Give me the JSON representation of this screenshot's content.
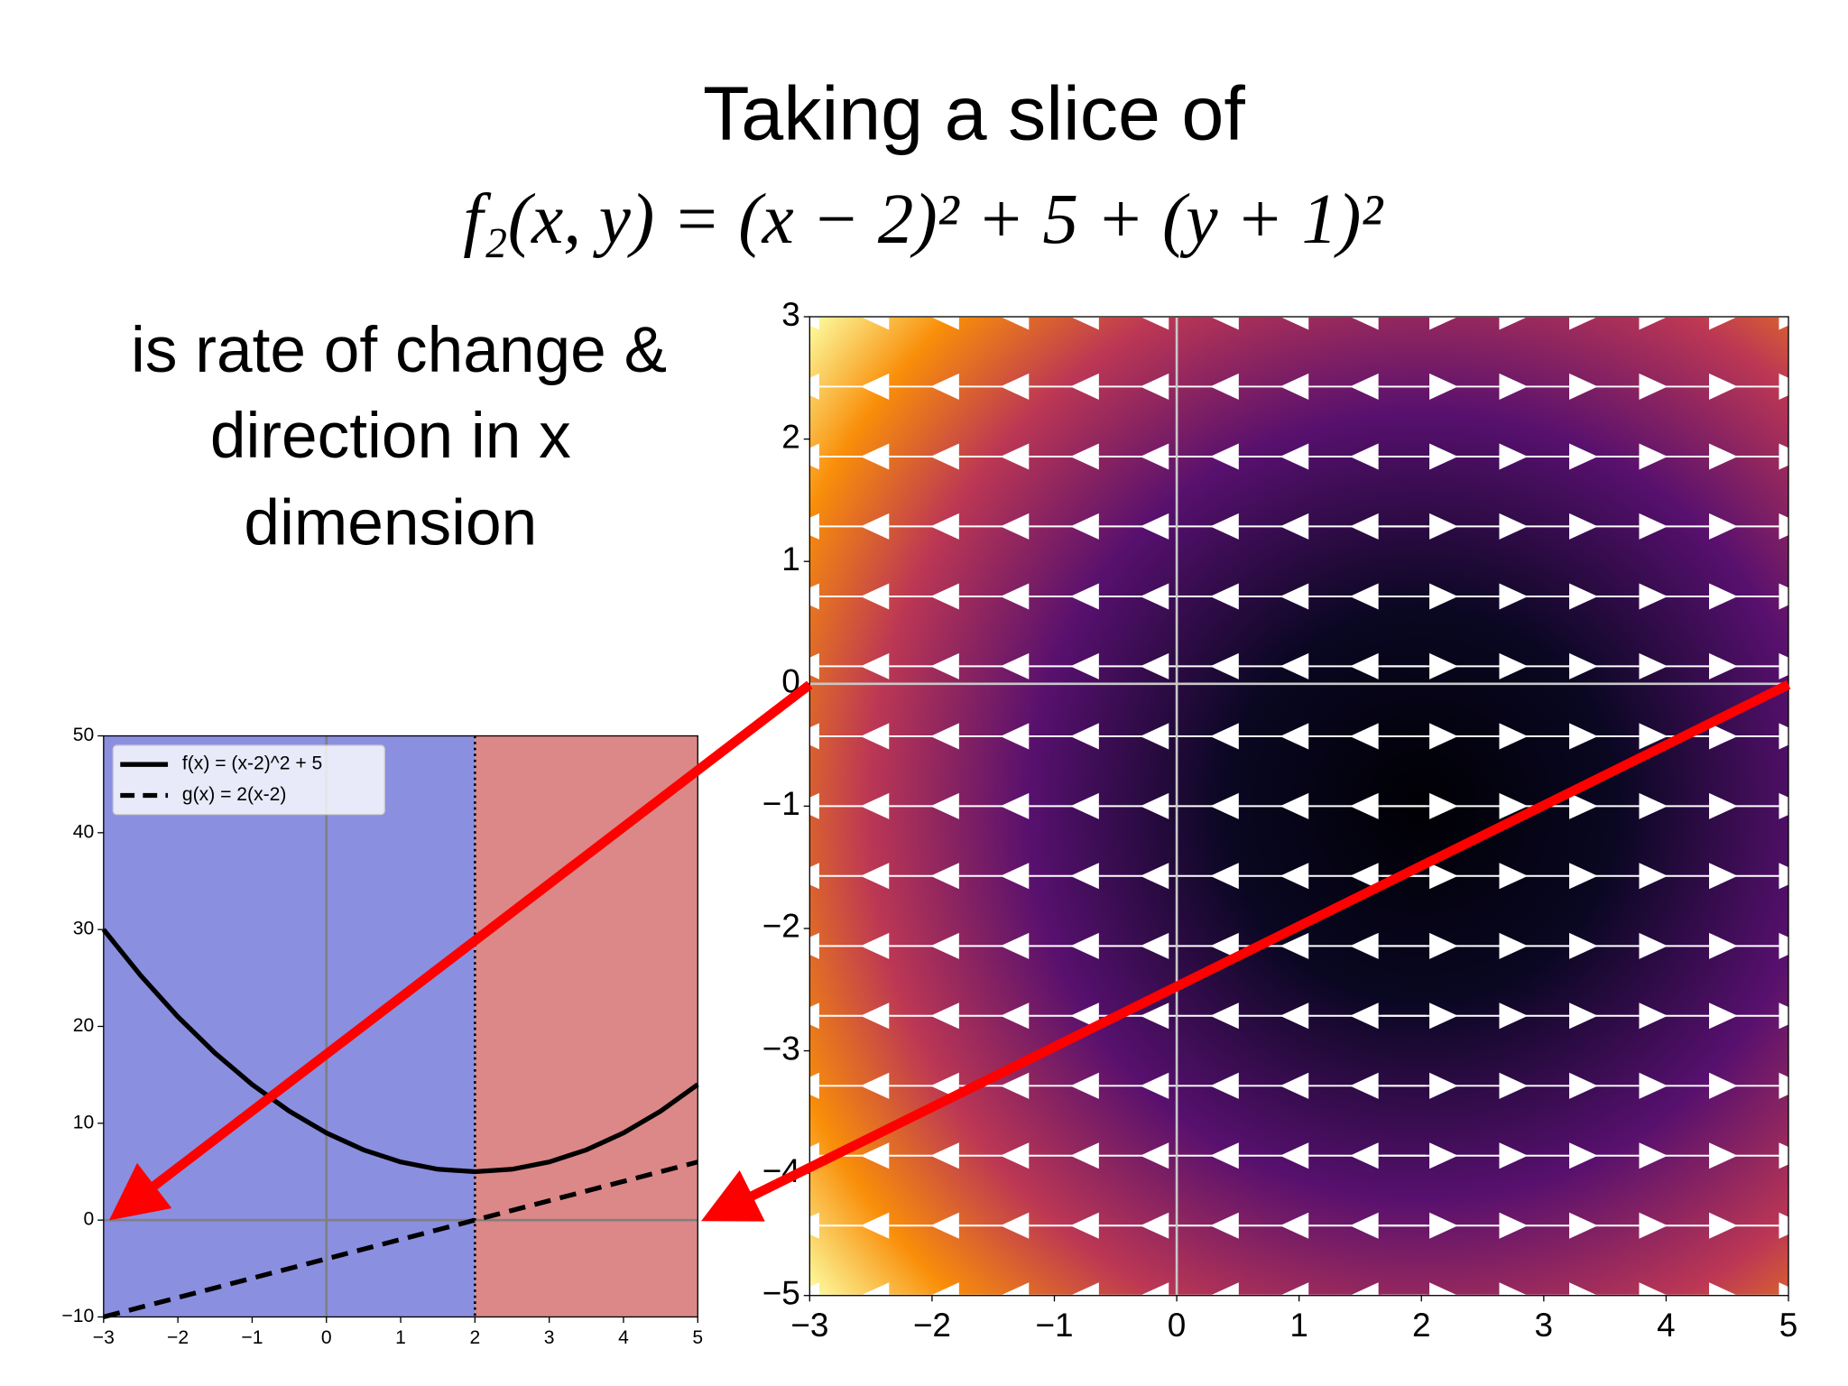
{
  "slide": {
    "title": "Taking a slice of",
    "formula": "f₂(x, y) = (x − 2)² + 5 + (y + 1)²",
    "caption": [
      "is rate of change &",
      "direction in x",
      "dimension"
    ]
  },
  "chart_data": [
    {
      "type": "line",
      "x": [
        -3,
        -2.5,
        -2,
        -1.5,
        -1,
        -0.5,
        0,
        0.5,
        1,
        1.5,
        2,
        2.5,
        3,
        3.5,
        4,
        4.5,
        5
      ],
      "series": [
        {
          "name": "f(x) = (x-2)^2 + 5",
          "color": "#000000",
          "linestyle": "solid",
          "values": [
            30,
            25.25,
            21,
            17.25,
            14,
            11.25,
            9,
            7.25,
            6,
            5.25,
            5,
            5.25,
            6,
            7.25,
            9,
            11.25,
            14
          ]
        },
        {
          "name": "g(x) = 2(x-2)",
          "color": "#000000",
          "linestyle": "dashed",
          "values": [
            -10,
            -9,
            -8,
            -7,
            -6,
            -5,
            -4,
            -3,
            -2,
            -1,
            0,
            1,
            2,
            3,
            4,
            5,
            6
          ]
        }
      ],
      "spans": [
        {
          "x0": -3,
          "x1": 2,
          "color": "#8b8fe0"
        },
        {
          "x0": 2,
          "x1": 5,
          "color": "#dc8888"
        }
      ],
      "vline": 2,
      "xlim": [
        -3,
        5
      ],
      "xticks": [
        {
          "value": -3,
          "label": "−3"
        },
        {
          "value": -2,
          "label": "−2"
        },
        {
          "value": -1,
          "label": "−1"
        },
        0,
        1,
        2,
        3,
        4,
        5
      ],
      "ylim": [
        -10,
        50
      ],
      "yticks": [
        {
          "value": -10,
          "label": "−10"
        },
        0,
        10,
        20,
        30,
        40,
        50
      ],
      "legend": "upper left"
    },
    {
      "type": "quiver",
      "x": [
        -3,
        -2.429,
        -1.857,
        -1.286,
        -0.714,
        -0.143,
        0.429,
        1,
        1.571,
        2.143,
        2.714,
        3.286,
        3.857,
        4.429,
        5
      ],
      "y": [
        -5,
        -4.429,
        -3.857,
        -3.286,
        -2.714,
        -2.143,
        -1.571,
        -1,
        -0.429,
        0.143,
        0.714,
        1.286,
        1.857,
        2.429,
        3
      ],
      "u": [
        -10,
        -8.857,
        -7.714,
        -6.571,
        -5.429,
        -4.286,
        -3.143,
        -2,
        -0.857,
        0.286,
        1.429,
        2.571,
        3.714,
        4.857,
        6
      ],
      "color": "#ffffff",
      "xlim": [
        -3,
        5
      ],
      "xticks": [
        {
          "value": -3,
          "label": "−3"
        },
        {
          "value": -2,
          "label": "−2"
        },
        {
          "value": -1,
          "label": "−1"
        },
        0,
        1,
        2,
        3,
        4,
        5
      ],
      "ylim": [
        -5,
        3
      ],
      "yticks": [
        {
          "value": -5,
          "label": "−5"
        },
        {
          "value": -4,
          "label": "−4"
        },
        {
          "value": -3,
          "label": "−3"
        },
        {
          "value": -2,
          "label": "−2"
        },
        {
          "value": -1,
          "label": "−1"
        },
        0,
        1,
        2,
        3
      ]
    }
  ]
}
